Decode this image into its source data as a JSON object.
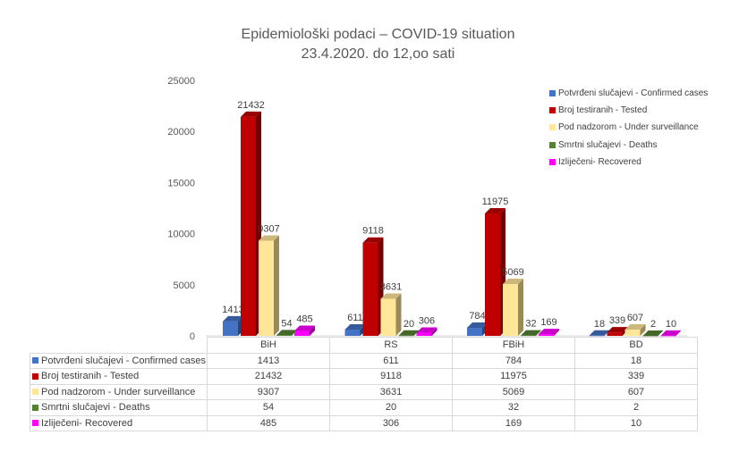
{
  "chart_data": {
    "type": "bar",
    "title": "Epidemiološki podaci – COVID-19 situation",
    "subtitle": "23.4.2020. do 12,oo sati",
    "categories": [
      "BiH",
      "RS",
      "FBiH",
      "BD"
    ],
    "series": [
      {
        "name": "Potvrđeni slučajevi - Confirmed cases",
        "color": "#4472c4",
        "values": [
          1413,
          611,
          784,
          18
        ]
      },
      {
        "name": "Broj testiranih - Tested",
        "color": "#c00000",
        "values": [
          21432,
          9118,
          11975,
          339
        ]
      },
      {
        "name": "Pod nadzorom - Under surveillance",
        "color": "#ffe699",
        "values": [
          9307,
          3631,
          5069,
          607
        ]
      },
      {
        "name": "Smrtni slučajevi - Deaths",
        "color": "#548235",
        "values": [
          54,
          20,
          32,
          2
        ]
      },
      {
        "name": "Izliječeni- Recovered",
        "color": "#ff00ff",
        "values": [
          485,
          306,
          169,
          10
        ]
      }
    ],
    "ylim": [
      0,
      25000
    ],
    "yticks": [
      0,
      5000,
      10000,
      15000,
      20000,
      25000
    ],
    "legend": "right",
    "data_table": true,
    "grid": false
  }
}
